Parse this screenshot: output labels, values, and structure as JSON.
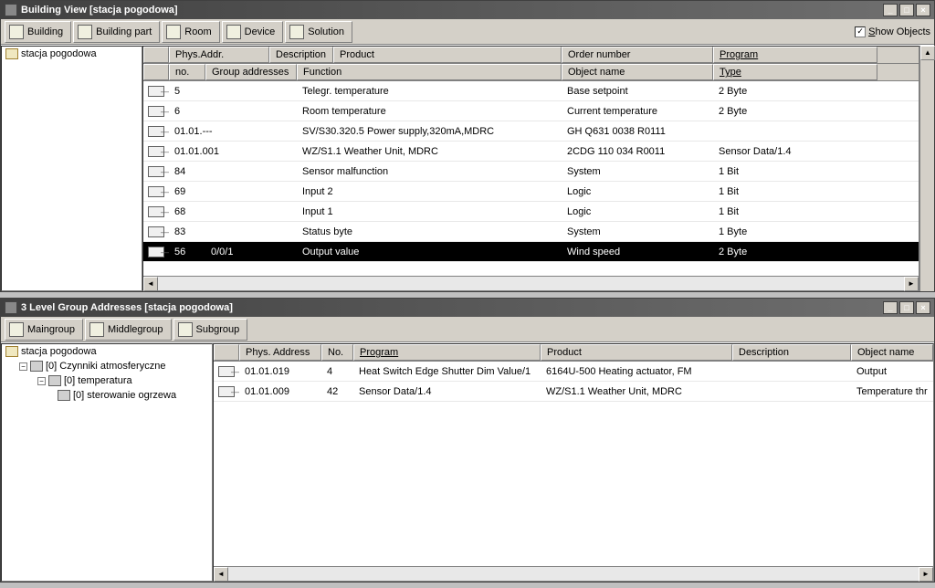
{
  "win1": {
    "title": "Building View [stacja pogodowa]",
    "toolbar": [
      {
        "label": "Building"
      },
      {
        "label": "Building part"
      },
      {
        "label": "Room"
      },
      {
        "label": "Device"
      },
      {
        "label": "Solution"
      }
    ],
    "show_objects_label": "Show Objects",
    "show_objects_checked": "✓",
    "tree": {
      "root": "stacja pogodowa"
    },
    "header1": [
      "",
      "Phys.Addr.",
      "Description",
      "Product",
      "Order number",
      "Program"
    ],
    "header1_u": [
      false,
      false,
      false,
      false,
      false,
      true
    ],
    "header2": [
      "",
      "no.",
      "Group addresses",
      "Function",
      "Object name",
      "Type"
    ],
    "header2_u": [
      false,
      false,
      false,
      false,
      false,
      true
    ],
    "rows": [
      {
        "no": "5",
        "ga": "",
        "fn": "Telegr. temperature",
        "obj": "Base setpoint",
        "type": "2 Byte",
        "sel": false,
        "kind": "obj"
      },
      {
        "no": "6",
        "ga": "",
        "fn": "Room temperature",
        "obj": "Current temperature",
        "type": "2 Byte",
        "sel": false,
        "kind": "obj"
      },
      {
        "no": "01.01.---",
        "ga": "",
        "fn": "SV/S30.320.5 Power supply,320mA,MDRC",
        "obj": "GH Q631 0038 R0111",
        "type": "",
        "sel": false,
        "kind": "dev"
      },
      {
        "no": "01.01.001",
        "ga": "",
        "fn": "WZ/S1.1 Weather Unit, MDRC",
        "obj": "2CDG 110 034 R0011",
        "type": "Sensor Data/1.4",
        "sel": false,
        "kind": "dev"
      },
      {
        "no": "84",
        "ga": "",
        "fn": "Sensor malfunction",
        "obj": "System",
        "type": "1 Bit",
        "sel": false,
        "kind": "obj"
      },
      {
        "no": "69",
        "ga": "",
        "fn": "Input 2",
        "obj": "Logic",
        "type": "1 Bit",
        "sel": false,
        "kind": "obj"
      },
      {
        "no": "68",
        "ga": "",
        "fn": "Input 1",
        "obj": "Logic",
        "type": "1 Bit",
        "sel": false,
        "kind": "obj"
      },
      {
        "no": "83",
        "ga": "",
        "fn": "Status byte",
        "obj": "System",
        "type": "1 Byte",
        "sel": false,
        "kind": "obj"
      },
      {
        "no": "56",
        "ga": "0/0/1",
        "fn": "Output value",
        "obj": "Wind speed",
        "type": "2 Byte",
        "sel": true,
        "kind": "obj"
      }
    ]
  },
  "win2": {
    "title": "3 Level Group Addresses [stacja pogodowa]",
    "toolbar": [
      {
        "label": "Maingroup"
      },
      {
        "label": "Middlegroup"
      },
      {
        "label": "Subgroup"
      }
    ],
    "tree": {
      "root": "stacja pogodowa",
      "n1": "[0] Czynniki atmosferyczne",
      "n2": "[0] temperatura",
      "n3": "[0] sterowanie ogrzewa"
    },
    "header": [
      "",
      "Phys. Address",
      "No.",
      "Program",
      "Product",
      "Description",
      "Object name"
    ],
    "header_u": [
      false,
      false,
      false,
      true,
      false,
      false,
      false
    ],
    "rows": [
      {
        "addr": "01.01.019",
        "no": "4",
        "prog": "Heat Switch Edge Shutter Dim Value/1",
        "prod": "6164U-500 Heating actuator, FM",
        "desc": "",
        "obj": "Output"
      },
      {
        "addr": "01.01.009",
        "no": "42",
        "prog": "Sensor Data/1.4",
        "prod": "WZ/S1.1 Weather Unit, MDRC",
        "desc": "",
        "obj": "Temperature thr"
      }
    ]
  }
}
